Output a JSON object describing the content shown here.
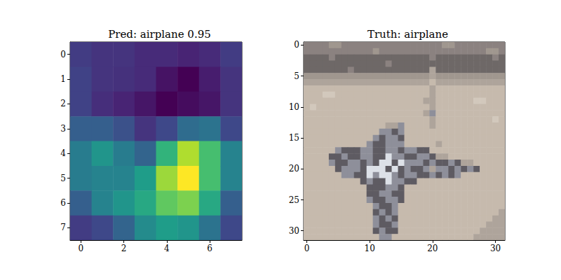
{
  "chart_data": [
    {
      "type": "heatmap",
      "title": "Pred: airplane 0.95",
      "cells": [
        [
          0.18,
          0.15,
          0.15,
          0.12,
          0.12,
          0.1,
          0.12,
          0.18
        ],
        [
          0.2,
          0.15,
          0.14,
          0.12,
          0.05,
          0.0,
          0.08,
          0.15
        ],
        [
          0.2,
          0.13,
          0.1,
          0.06,
          0.0,
          0.03,
          0.06,
          0.15
        ],
        [
          0.3,
          0.3,
          0.25,
          0.15,
          0.22,
          0.35,
          0.38,
          0.22
        ],
        [
          0.42,
          0.52,
          0.42,
          0.32,
          0.65,
          0.88,
          0.7,
          0.45
        ],
        [
          0.42,
          0.45,
          0.45,
          0.55,
          0.85,
          1.0,
          0.7,
          0.45
        ],
        [
          0.3,
          0.45,
          0.52,
          0.6,
          0.75,
          0.8,
          0.6,
          0.3
        ],
        [
          0.18,
          0.22,
          0.32,
          0.48,
          0.55,
          0.52,
          0.38,
          0.22
        ]
      ],
      "color_range": [
        0,
        1
      ],
      "xlim": [
        -0.5,
        7.5
      ],
      "ylim": [
        7.5,
        -0.5
      ],
      "xticks": [
        0,
        2,
        4,
        6
      ],
      "yticks": [
        0,
        1,
        2,
        3,
        4,
        5,
        6,
        7
      ]
    },
    {
      "type": "image",
      "title": "Truth: airplane",
      "palette": [
        "#8b8280",
        "#6e6867",
        "#a0978f",
        "#c6baad",
        "#d2c8bc",
        "#5e5b62",
        "#8e8f9a",
        "#dde1e8",
        "#aea49b"
      ],
      "pixels": [
        [
          0,
          0,
          0,
          0,
          2,
          2,
          0,
          0,
          0,
          0,
          0,
          0,
          0,
          0,
          0,
          0,
          0,
          0,
          0,
          0,
          0,
          0,
          2,
          2,
          0,
          0,
          0,
          0,
          0,
          0,
          0,
          0
        ],
        [
          0,
          0,
          0,
          0,
          0,
          0,
          0,
          0,
          0,
          0,
          0,
          2,
          0,
          0,
          0,
          0,
          0,
          0,
          0,
          0,
          0,
          0,
          0,
          0,
          0,
          0,
          0,
          0,
          0,
          2,
          2,
          0
        ],
        [
          1,
          1,
          1,
          1,
          0,
          1,
          1,
          1,
          1,
          1,
          1,
          1,
          1,
          1,
          1,
          1,
          1,
          1,
          1,
          1,
          0,
          1,
          1,
          1,
          1,
          1,
          1,
          1,
          1,
          1,
          0,
          1
        ],
        [
          1,
          1,
          1,
          1,
          1,
          1,
          1,
          1,
          1,
          1,
          1,
          1,
          1,
          0,
          1,
          1,
          1,
          1,
          1,
          1,
          1,
          1,
          1,
          1,
          1,
          1,
          1,
          1,
          1,
          1,
          1,
          1
        ],
        [
          1,
          1,
          1,
          1,
          1,
          1,
          1,
          0,
          1,
          1,
          1,
          1,
          1,
          1,
          1,
          1,
          1,
          1,
          1,
          1,
          8,
          1,
          1,
          1,
          1,
          1,
          1,
          1,
          1,
          1,
          1,
          1
        ],
        [
          2,
          2,
          2,
          2,
          2,
          2,
          2,
          2,
          2,
          2,
          2,
          2,
          2,
          2,
          2,
          2,
          2,
          2,
          2,
          2,
          8,
          2,
          2,
          2,
          2,
          2,
          2,
          2,
          2,
          2,
          2,
          2
        ],
        [
          8,
          8,
          8,
          8,
          8,
          8,
          8,
          8,
          8,
          8,
          8,
          8,
          8,
          8,
          8,
          8,
          8,
          8,
          8,
          8,
          3,
          8,
          8,
          8,
          8,
          8,
          8,
          8,
          8,
          8,
          8,
          8
        ],
        [
          3,
          3,
          3,
          3,
          3,
          3,
          3,
          3,
          3,
          3,
          3,
          3,
          3,
          3,
          3,
          3,
          3,
          3,
          3,
          3,
          8,
          3,
          3,
          3,
          3,
          3,
          3,
          3,
          3,
          3,
          3,
          3
        ],
        [
          3,
          3,
          3,
          4,
          4,
          3,
          3,
          3,
          3,
          3,
          3,
          3,
          3,
          3,
          3,
          3,
          3,
          3,
          3,
          3,
          8,
          3,
          3,
          3,
          3,
          3,
          3,
          3,
          3,
          3,
          3,
          3
        ],
        [
          3,
          3,
          3,
          3,
          3,
          3,
          3,
          3,
          3,
          3,
          3,
          3,
          3,
          3,
          3,
          3,
          3,
          3,
          3,
          8,
          8,
          3,
          3,
          3,
          3,
          3,
          3,
          4,
          4,
          3,
          3,
          3
        ],
        [
          3,
          4,
          3,
          3,
          3,
          3,
          3,
          3,
          3,
          3,
          3,
          3,
          3,
          3,
          3,
          3,
          3,
          3,
          3,
          3,
          8,
          3,
          3,
          3,
          3,
          3,
          3,
          3,
          3,
          3,
          3,
          3
        ],
        [
          3,
          3,
          3,
          3,
          3,
          3,
          3,
          3,
          3,
          3,
          3,
          3,
          3,
          3,
          3,
          3,
          3,
          3,
          3,
          8,
          6,
          3,
          3,
          3,
          3,
          3,
          3,
          3,
          3,
          3,
          3,
          3
        ],
        [
          3,
          3,
          3,
          3,
          3,
          3,
          3,
          3,
          3,
          3,
          3,
          3,
          3,
          3,
          3,
          3,
          3,
          3,
          3,
          3,
          8,
          3,
          3,
          3,
          3,
          3,
          3,
          3,
          3,
          3,
          4,
          3
        ],
        [
          3,
          3,
          3,
          3,
          3,
          3,
          3,
          3,
          3,
          3,
          3,
          3,
          3,
          8,
          8,
          6,
          3,
          3,
          3,
          3,
          8,
          3,
          3,
          3,
          3,
          3,
          3,
          3,
          3,
          3,
          3,
          3
        ],
        [
          3,
          3,
          3,
          3,
          3,
          3,
          3,
          3,
          3,
          3,
          3,
          3,
          6,
          6,
          5,
          6,
          3,
          3,
          3,
          3,
          3,
          3,
          3,
          3,
          3,
          3,
          3,
          3,
          3,
          3,
          3,
          3
        ],
        [
          3,
          3,
          3,
          3,
          3,
          3,
          3,
          3,
          3,
          3,
          3,
          6,
          5,
          6,
          6,
          5,
          3,
          3,
          3,
          3,
          3,
          3,
          3,
          3,
          3,
          3,
          3,
          3,
          3,
          3,
          3,
          3
        ],
        [
          3,
          3,
          3,
          3,
          3,
          3,
          3,
          3,
          3,
          3,
          6,
          5,
          5,
          6,
          6,
          6,
          3,
          3,
          3,
          3,
          3,
          8,
          3,
          3,
          3,
          3,
          3,
          3,
          3,
          3,
          3,
          3
        ],
        [
          3,
          3,
          3,
          3,
          3,
          6,
          5,
          5,
          5,
          6,
          6,
          5,
          5,
          6,
          6,
          5,
          6,
          6,
          5,
          5,
          3,
          3,
          3,
          3,
          3,
          3,
          3,
          3,
          3,
          3,
          3,
          3
        ],
        [
          3,
          3,
          3,
          3,
          5,
          5,
          6,
          5,
          5,
          6,
          6,
          5,
          5,
          7,
          6,
          6,
          5,
          5,
          6,
          6,
          5,
          8,
          8,
          3,
          3,
          3,
          3,
          3,
          3,
          3,
          3,
          3
        ],
        [
          3,
          3,
          3,
          3,
          6,
          5,
          5,
          6,
          6,
          5,
          6,
          5,
          7,
          7,
          5,
          7,
          6,
          6,
          6,
          5,
          6,
          5,
          5,
          6,
          5,
          8,
          8,
          3,
          3,
          3,
          3,
          3
        ],
        [
          3,
          3,
          3,
          3,
          3,
          5,
          6,
          6,
          6,
          5,
          7,
          7,
          7,
          5,
          7,
          5,
          6,
          5,
          5,
          6,
          8,
          6,
          6,
          5,
          6,
          5,
          6,
          5,
          3,
          3,
          3,
          3
        ],
        [
          3,
          3,
          3,
          3,
          3,
          3,
          6,
          6,
          5,
          5,
          7,
          6,
          7,
          7,
          6,
          5,
          6,
          6,
          5,
          5,
          6,
          5,
          6,
          5,
          6,
          3,
          3,
          3,
          3,
          3,
          3,
          3
        ],
        [
          3,
          3,
          3,
          3,
          3,
          3,
          3,
          3,
          3,
          5,
          6,
          5,
          5,
          7,
          6,
          6,
          5,
          5,
          3,
          3,
          3,
          3,
          3,
          3,
          3,
          3,
          3,
          3,
          3,
          3,
          3,
          3
        ],
        [
          3,
          3,
          3,
          3,
          3,
          3,
          3,
          3,
          3,
          3,
          5,
          5,
          5,
          6,
          6,
          5,
          3,
          3,
          3,
          3,
          3,
          3,
          3,
          3,
          3,
          3,
          3,
          3,
          3,
          3,
          3,
          3
        ],
        [
          3,
          3,
          3,
          3,
          3,
          3,
          3,
          3,
          3,
          3,
          5,
          5,
          6,
          6,
          5,
          5,
          3,
          3,
          3,
          3,
          3,
          3,
          3,
          3,
          3,
          3,
          3,
          3,
          3,
          3,
          3,
          3
        ],
        [
          3,
          3,
          3,
          3,
          3,
          3,
          3,
          3,
          3,
          3,
          6,
          5,
          5,
          6,
          6,
          5,
          3,
          3,
          3,
          3,
          3,
          3,
          3,
          3,
          3,
          3,
          3,
          3,
          3,
          3,
          3,
          3
        ],
        [
          3,
          3,
          3,
          3,
          3,
          3,
          3,
          3,
          3,
          3,
          3,
          6,
          5,
          5,
          6,
          3,
          3,
          3,
          3,
          3,
          3,
          3,
          3,
          3,
          3,
          3,
          3,
          3,
          3,
          3,
          3,
          3
        ],
        [
          3,
          3,
          3,
          3,
          3,
          3,
          3,
          3,
          3,
          3,
          3,
          5,
          6,
          5,
          6,
          3,
          3,
          3,
          3,
          3,
          3,
          3,
          3,
          3,
          3,
          3,
          3,
          3,
          3,
          3,
          3,
          8
        ],
        [
          3,
          3,
          3,
          3,
          3,
          3,
          3,
          3,
          3,
          3,
          3,
          6,
          5,
          6,
          5,
          3,
          3,
          3,
          3,
          3,
          3,
          3,
          3,
          3,
          3,
          3,
          3,
          3,
          3,
          3,
          8,
          8
        ],
        [
          3,
          3,
          3,
          3,
          3,
          3,
          3,
          3,
          3,
          3,
          3,
          6,
          5,
          5,
          6,
          3,
          3,
          3,
          3,
          3,
          3,
          3,
          3,
          3,
          3,
          3,
          3,
          3,
          3,
          8,
          8,
          8
        ],
        [
          3,
          3,
          3,
          3,
          3,
          3,
          3,
          3,
          3,
          3,
          3,
          5,
          6,
          5,
          5,
          3,
          3,
          3,
          3,
          3,
          3,
          3,
          3,
          3,
          3,
          3,
          3,
          3,
          8,
          8,
          8,
          8
        ],
        [
          3,
          3,
          3,
          3,
          3,
          3,
          3,
          3,
          3,
          3,
          3,
          3,
          6,
          6,
          3,
          3,
          3,
          3,
          3,
          3,
          3,
          3,
          3,
          3,
          3,
          3,
          3,
          8,
          8,
          8,
          8,
          8
        ]
      ],
      "xlim": [
        -0.5,
        31.5
      ],
      "ylim": [
        31.5,
        -0.5
      ],
      "xticks": [
        0,
        10,
        20,
        30
      ],
      "yticks": [
        0,
        5,
        10,
        15,
        20,
        25,
        30
      ]
    }
  ]
}
